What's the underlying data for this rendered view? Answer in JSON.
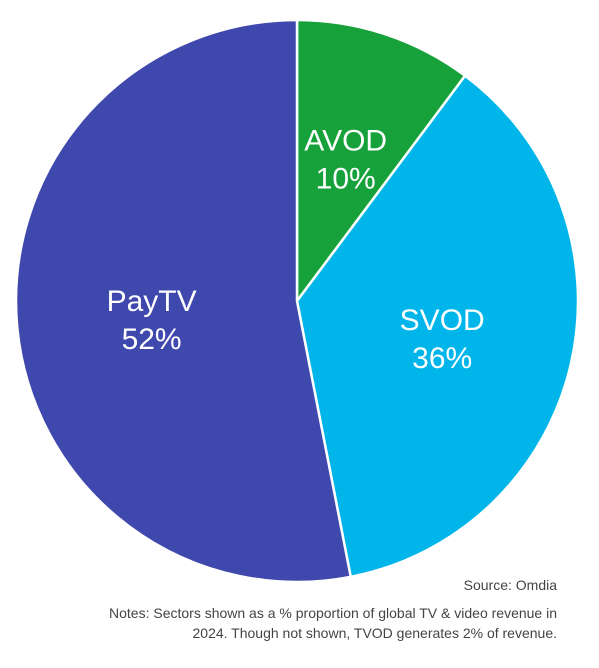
{
  "chart_data": {
    "type": "pie",
    "slices": [
      {
        "label": "AVOD",
        "value": 10,
        "value_label": "10%",
        "color": "#17a13b"
      },
      {
        "label": "SVOD",
        "value": 36,
        "value_label": "36%",
        "color": "#00b5ea"
      },
      {
        "label": "PayTV",
        "value": 52,
        "value_label": "52%",
        "color": "#3f48ad"
      }
    ],
    "start": "12 o'clock",
    "direction": "clockwise",
    "slice_border_color": "#ffffff",
    "legend": "none (labels inside slices)"
  },
  "footer": {
    "source": "Source: Omdia",
    "notes_line1": "Notes: Sectors shown as a % proportion of global TV & video revenue in",
    "notes_line2": "2024. Though not shown, TVOD generates 2% of revenue."
  }
}
